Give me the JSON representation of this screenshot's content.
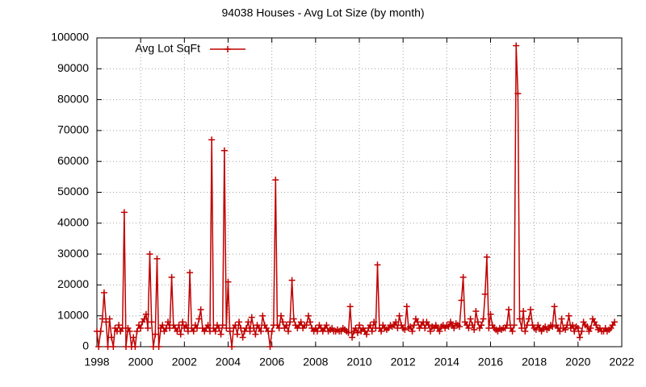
{
  "chart_data": {
    "type": "line",
    "title": "94038 Houses - Avg Lot Size (by month)",
    "legend": "top left",
    "grid": true,
    "xlim": [
      1998,
      2022
    ],
    "xticks": [
      1998,
      2000,
      2002,
      2004,
      2006,
      2008,
      2010,
      2012,
      2014,
      2016,
      2018,
      2020,
      2022
    ],
    "ylim": [
      0,
      100000
    ],
    "yticks": [
      0,
      10000,
      20000,
      30000,
      40000,
      50000,
      60000,
      70000,
      80000,
      90000,
      100000
    ],
    "x": [
      1998.0,
      1998.08,
      1998.17,
      1998.25,
      1998.33,
      1998.42,
      1998.5,
      1998.58,
      1998.67,
      1998.75,
      1998.83,
      1998.92,
      1999.0,
      1999.08,
      1999.17,
      1999.25,
      1999.33,
      1999.42,
      1999.5,
      1999.58,
      1999.67,
      1999.75,
      1999.83,
      1999.92,
      2000.0,
      2000.08,
      2000.17,
      2000.25,
      2000.33,
      2000.42,
      2000.5,
      2000.58,
      2000.67,
      2000.75,
      2000.83,
      2000.92,
      2001.0,
      2001.08,
      2001.17,
      2001.25,
      2001.33,
      2001.42,
      2001.5,
      2001.58,
      2001.67,
      2001.75,
      2001.83,
      2001.92,
      2002.0,
      2002.08,
      2002.17,
      2002.25,
      2002.33,
      2002.42,
      2002.5,
      2002.58,
      2002.67,
      2002.75,
      2002.83,
      2002.92,
      2003.0,
      2003.08,
      2003.17,
      2003.25,
      2003.33,
      2003.42,
      2003.5,
      2003.58,
      2003.67,
      2003.75,
      2003.83,
      2003.92,
      2004.0,
      2004.08,
      2004.17,
      2004.25,
      2004.33,
      2004.42,
      2004.5,
      2004.58,
      2004.67,
      2004.75,
      2004.83,
      2004.92,
      2005.0,
      2005.08,
      2005.17,
      2005.25,
      2005.33,
      2005.42,
      2005.5,
      2005.58,
      2005.67,
      2005.75,
      2005.83,
      2005.92,
      2006.0,
      2006.08,
      2006.17,
      2006.25,
      2006.33,
      2006.42,
      2006.5,
      2006.58,
      2006.67,
      2006.75,
      2006.83,
      2006.92,
      2007.0,
      2007.08,
      2007.17,
      2007.25,
      2007.33,
      2007.42,
      2007.5,
      2007.58,
      2007.67,
      2007.75,
      2007.83,
      2007.92,
      2008.0,
      2008.08,
      2008.17,
      2008.25,
      2008.33,
      2008.42,
      2008.5,
      2008.58,
      2008.67,
      2008.75,
      2008.83,
      2008.92,
      2009.0,
      2009.08,
      2009.17,
      2009.25,
      2009.33,
      2009.42,
      2009.5,
      2009.58,
      2009.67,
      2009.75,
      2009.83,
      2009.92,
      2010.0,
      2010.08,
      2010.17,
      2010.25,
      2010.33,
      2010.42,
      2010.5,
      2010.58,
      2010.67,
      2010.75,
      2010.83,
      2010.92,
      2011.0,
      2011.08,
      2011.17,
      2011.25,
      2011.33,
      2011.42,
      2011.5,
      2011.58,
      2011.67,
      2011.75,
      2011.83,
      2011.92,
      2012.0,
      2012.08,
      2012.17,
      2012.25,
      2012.33,
      2012.42,
      2012.5,
      2012.58,
      2012.67,
      2012.75,
      2012.83,
      2012.92,
      2013.0,
      2013.08,
      2013.17,
      2013.25,
      2013.33,
      2013.42,
      2013.5,
      2013.58,
      2013.67,
      2013.75,
      2013.83,
      2013.92,
      2014.0,
      2014.08,
      2014.17,
      2014.25,
      2014.33,
      2014.42,
      2014.5,
      2014.58,
      2014.67,
      2014.75,
      2014.83,
      2014.92,
      2015.0,
      2015.08,
      2015.17,
      2015.25,
      2015.33,
      2015.42,
      2015.5,
      2015.58,
      2015.67,
      2015.75,
      2015.83,
      2015.92,
      2016.0,
      2016.08,
      2016.17,
      2016.25,
      2016.33,
      2016.42,
      2016.5,
      2016.58,
      2016.67,
      2016.75,
      2016.83,
      2016.92,
      2017.0,
      2017.08,
      2017.17,
      2017.25,
      2017.33,
      2017.42,
      2017.5,
      2017.58,
      2017.67,
      2017.75,
      2017.83,
      2017.92,
      2018.0,
      2018.08,
      2018.17,
      2018.25,
      2018.33,
      2018.42,
      2018.5,
      2018.58,
      2018.67,
      2018.75,
      2018.83,
      2018.92,
      2019.0,
      2019.08,
      2019.17,
      2019.25,
      2019.33,
      2019.42,
      2019.5,
      2019.58,
      2019.67,
      2019.75,
      2019.83,
      2019.92,
      2020.0,
      2020.08,
      2020.17,
      2020.25,
      2020.33,
      2020.42,
      2020.5,
      2020.58,
      2020.67,
      2020.75,
      2020.83,
      2020.92,
      2021.0,
      2021.08,
      2021.17,
      2021.25,
      2021.33,
      2021.42,
      2021.5,
      2021.58,
      2021.67
    ],
    "series": [
      {
        "name": "Avg Lot SqFt",
        "color": "#c00000",
        "values": [
          5000,
          0,
          5000,
          9000,
          17500,
          8000,
          0,
          9000,
          3000,
          0,
          6000,
          5000,
          7000,
          5000,
          6000,
          43500,
          0,
          6000,
          5000,
          0,
          3000,
          0,
          5000,
          7000,
          6000,
          8000,
          9000,
          10500,
          6000,
          30000,
          8000,
          0,
          4000,
          28500,
          0,
          6000,
          7000,
          5000,
          6000,
          8000,
          6000,
          22500,
          7000,
          6000,
          5000,
          7000,
          4000,
          8000,
          6000,
          7000,
          5000,
          24000,
          6000,
          5000,
          7000,
          6000,
          9000,
          12000,
          6000,
          5000,
          6000,
          7000,
          5000,
          67000,
          6000,
          5000,
          7000,
          6000,
          4000,
          7000,
          63500,
          6000,
          21000,
          5000,
          0,
          6000,
          7000,
          4000,
          8000,
          6000,
          3000,
          5000,
          6000,
          8000,
          5000,
          9500,
          6000,
          4000,
          7000,
          6000,
          5000,
          10000,
          7000,
          6000,
          5000,
          0,
          5000,
          7000,
          54000,
          7000,
          6000,
          10000,
          8000,
          6000,
          7000,
          5000,
          8000,
          21500,
          9000,
          7000,
          6000,
          7000,
          8000,
          6000,
          7000,
          7000,
          10000,
          8000,
          6000,
          5000,
          6000,
          5000,
          7000,
          6000,
          5000,
          6000,
          7000,
          5000,
          5500,
          6000,
          5000,
          5000,
          5500,
          5000,
          5000,
          6000,
          5500,
          5000,
          4500,
          13000,
          3000,
          5000,
          6000,
          4500,
          7000,
          5000,
          6000,
          5000,
          4000,
          6000,
          7000,
          5000,
          8000,
          6000,
          26500,
          6000,
          5000,
          7000,
          6000,
          5500,
          6000,
          7000,
          6500,
          7000,
          8000,
          6000,
          10000,
          7000,
          6000,
          5500,
          13000,
          6000,
          6500,
          5000,
          7000,
          9000,
          8000,
          6000,
          7000,
          8000,
          6000,
          8000,
          7000,
          5000,
          6500,
          6000,
          7000,
          6000,
          5000,
          6500,
          7000,
          6000,
          7000,
          6500,
          8000,
          7000,
          6000,
          7500,
          7000,
          6500,
          15000,
          22500,
          8000,
          7000,
          6000,
          9000,
          7000,
          5500,
          11500,
          8000,
          6000,
          7000,
          9000,
          17000,
          29000,
          6000,
          10500,
          7000,
          6000,
          5500,
          5000,
          6000,
          5500,
          6000,
          6000,
          7000,
          12000,
          6000,
          5000,
          7000,
          97500,
          82000,
          9000,
          6000,
          11500,
          5000,
          7000,
          9000,
          12000,
          7000,
          6000,
          5500,
          7000,
          6000,
          5000,
          6000,
          6500,
          5500,
          6000,
          7000,
          6500,
          13000,
          7000,
          6000,
          5000,
          9000,
          6000,
          5500,
          7000,
          10000,
          6000,
          7000,
          5000,
          6500,
          6000,
          3000,
          5000,
          8000,
          7000,
          6500,
          5000,
          6000,
          9000,
          8000,
          7000,
          5500,
          6000,
          5000,
          5000,
          6000,
          5000,
          5500,
          6000,
          7000,
          8000
        ]
      }
    ]
  }
}
